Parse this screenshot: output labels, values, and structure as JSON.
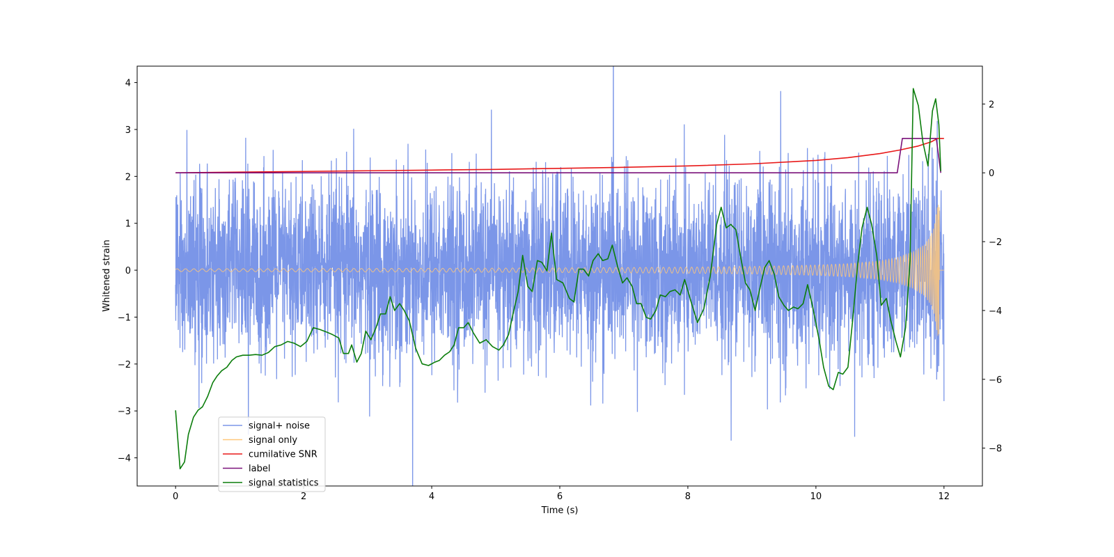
{
  "chart_data": {
    "type": "line",
    "xlabel": "Time (s)",
    "ylabel": "Whitened strain",
    "xlim": [
      -0.6,
      12.6
    ],
    "ylim": [
      -4.6,
      4.35
    ],
    "y2lim": [
      -9.1,
      3.1
    ],
    "x_ticks": [
      0,
      2,
      4,
      6,
      8,
      10,
      12
    ],
    "x_tick_labels": [
      "0",
      "2",
      "4",
      "6",
      "8",
      "10",
      "12"
    ],
    "y_ticks": [
      4,
      3,
      2,
      1,
      0,
      -1,
      -2,
      -3,
      -4
    ],
    "y_tick_labels": [
      "4",
      "3",
      "2",
      "1",
      "0",
      "−1",
      "−2",
      "−3",
      "−4"
    ],
    "y2_ticks": [
      2,
      0,
      -2,
      -4,
      -6,
      -8
    ],
    "y2_tick_labels": [
      "2",
      "0",
      "−2",
      "−4",
      "−6",
      "−8"
    ],
    "legend": {
      "placement": "lower-left",
      "entries": [
        {
          "label": "signal+ noise",
          "color": "#7b96e8"
        },
        {
          "label": "signal only",
          "color": "#ffc87a"
        },
        {
          "label": "cumilative SNR",
          "color": "#e81818"
        },
        {
          "label": "label",
          "color": "#7a117a"
        },
        {
          "label": "signal statistics",
          "color": "#0b7d0b"
        }
      ]
    },
    "series": [
      {
        "name": "signal+ noise",
        "axis": "left",
        "color": "#7b96e8",
        "description": "whitened noise plus chirp, approx gaussian, std ~0.95, t in [0, 12]",
        "noise_std": 0.95,
        "t_range": [
          0,
          12
        ]
      },
      {
        "name": "signal only",
        "axis": "left",
        "color": "#ffc87a",
        "description": "chirp with amplitude growing toward merger at t~11.9",
        "envelope_t": [
          0,
          2,
          4,
          6,
          8,
          9,
          10,
          10.5,
          11,
          11.3,
          11.5,
          11.7,
          11.8,
          11.85,
          11.9,
          11.93
        ],
        "envelope_a": [
          0.03,
          0.035,
          0.04,
          0.05,
          0.065,
          0.08,
          0.11,
          0.14,
          0.2,
          0.28,
          0.38,
          0.55,
          0.75,
          0.95,
          1.4,
          1.4
        ]
      },
      {
        "name": "cumilative SNR",
        "axis": "right",
        "color": "#e81818",
        "x": [
          0,
          1,
          2,
          3,
          4,
          5,
          6,
          7,
          8,
          9,
          10,
          10.5,
          11,
          11.3,
          11.6,
          11.8,
          11.9,
          11.95,
          12
        ],
        "y": [
          0,
          0.02,
          0.04,
          0.06,
          0.08,
          0.1,
          0.13,
          0.16,
          0.2,
          0.26,
          0.36,
          0.44,
          0.56,
          0.66,
          0.78,
          0.9,
          1.0,
          1.0,
          1.0
        ]
      },
      {
        "name": "label",
        "axis": "right",
        "color": "#7a117a",
        "x": [
          0,
          11.27,
          11.35,
          11.88,
          11.95
        ],
        "y": [
          0,
          0,
          1,
          1,
          0
        ]
      },
      {
        "name": "signal statistics",
        "axis": "right",
        "color": "#0b7d0b",
        "x": [
          0,
          0.07,
          0.14,
          0.2,
          0.28,
          0.35,
          0.42,
          0.5,
          0.58,
          0.65,
          0.72,
          0.8,
          0.88,
          0.95,
          1.05,
          1.15,
          1.25,
          1.35,
          1.45,
          1.55,
          1.65,
          1.75,
          1.85,
          1.95,
          2.05,
          2.15,
          2.25,
          2.35,
          2.45,
          2.55,
          2.62,
          2.7,
          2.75,
          2.83,
          2.9,
          2.97,
          3.05,
          3.13,
          3.2,
          3.28,
          3.35,
          3.42,
          3.5,
          3.57,
          3.65,
          3.75,
          3.85,
          3.95,
          4.05,
          4.12,
          4.2,
          4.28,
          4.35,
          4.42,
          4.5,
          4.57,
          4.65,
          4.75,
          4.85,
          4.95,
          5.05,
          5.12,
          5.2,
          5.27,
          5.35,
          5.42,
          5.5,
          5.57,
          5.65,
          5.72,
          5.8,
          5.87,
          5.95,
          6.05,
          6.15,
          6.22,
          6.3,
          6.37,
          6.45,
          6.52,
          6.6,
          6.67,
          6.75,
          6.82,
          6.9,
          6.98,
          7.05,
          7.13,
          7.2,
          7.27,
          7.35,
          7.42,
          7.5,
          7.57,
          7.65,
          7.72,
          7.8,
          7.88,
          7.95,
          8.05,
          8.15,
          8.25,
          8.35,
          8.45,
          8.52,
          8.6,
          8.67,
          8.75,
          8.82,
          8.9,
          8.97,
          9.05,
          9.12,
          9.2,
          9.27,
          9.35,
          9.42,
          9.5,
          9.57,
          9.65,
          9.72,
          9.8,
          9.87,
          9.95,
          10.05,
          10.12,
          10.2,
          10.27,
          10.35,
          10.42,
          10.5,
          10.57,
          10.65,
          10.72,
          10.8,
          10.87,
          10.95,
          11.02,
          11.1,
          11.17,
          11.25,
          11.32,
          11.4,
          11.47,
          11.52,
          11.6,
          11.67,
          11.75,
          11.82,
          11.87,
          11.92,
          11.95
        ],
        "y": [
          -6.9,
          -8.6,
          -8.4,
          -7.6,
          -7.1,
          -6.9,
          -6.8,
          -6.5,
          -6.1,
          -5.9,
          -5.75,
          -5.65,
          -5.45,
          -5.35,
          -5.3,
          -5.3,
          -5.28,
          -5.3,
          -5.22,
          -5.05,
          -5.0,
          -4.9,
          -4.95,
          -5.05,
          -4.9,
          -4.5,
          -4.55,
          -4.62,
          -4.7,
          -4.8,
          -5.25,
          -5.25,
          -5.0,
          -5.5,
          -5.25,
          -4.6,
          -4.85,
          -4.5,
          -4.1,
          -4.1,
          -3.6,
          -4.0,
          -3.8,
          -4.0,
          -4.3,
          -5.1,
          -5.55,
          -5.6,
          -5.5,
          -5.45,
          -5.3,
          -5.2,
          -5.0,
          -4.5,
          -4.5,
          -4.35,
          -4.65,
          -4.95,
          -4.85,
          -5.05,
          -5.15,
          -5.0,
          -4.7,
          -4.1,
          -3.45,
          -2.4,
          -3.3,
          -3.45,
          -2.55,
          -2.6,
          -2.85,
          -1.75,
          -3.1,
          -3.2,
          -3.65,
          -3.75,
          -2.8,
          -2.8,
          -3.0,
          -2.55,
          -2.35,
          -2.55,
          -2.5,
          -2.1,
          -2.7,
          -3.2,
          -3.05,
          -3.3,
          -3.8,
          -3.8,
          -4.2,
          -4.25,
          -4.0,
          -3.55,
          -3.6,
          -3.45,
          -3.4,
          -3.55,
          -3.1,
          -3.75,
          -4.35,
          -3.95,
          -3.0,
          -1.5,
          -1.0,
          -1.6,
          -1.5,
          -1.65,
          -2.4,
          -3.2,
          -3.4,
          -4.0,
          -3.4,
          -2.75,
          -2.55,
          -2.95,
          -3.6,
          -3.85,
          -4.0,
          -3.9,
          -3.95,
          -3.8,
          -3.25,
          -3.9,
          -4.85,
          -5.65,
          -6.2,
          -6.3,
          -5.8,
          -5.85,
          -5.65,
          -4.35,
          -2.7,
          -1.6,
          -1.0,
          -1.5,
          -2.4,
          -3.85,
          -3.65,
          -4.3,
          -4.9,
          -5.35,
          -4.5,
          -2.55,
          2.45,
          1.95,
          0.9,
          0.2,
          1.8,
          2.15,
          1.4,
          0.05
        ]
      }
    ]
  }
}
